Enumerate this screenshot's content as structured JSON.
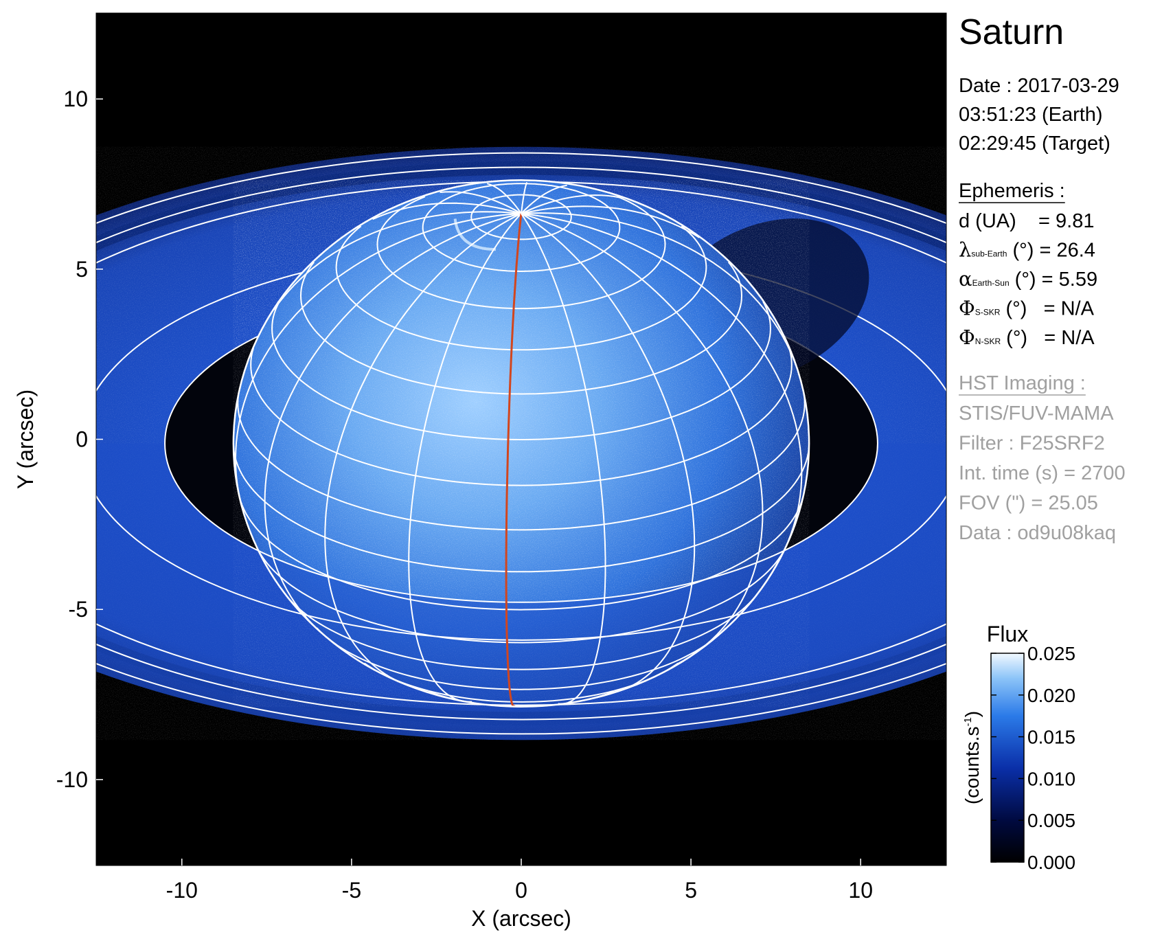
{
  "chart_data": {
    "type": "image",
    "title": "Saturn",
    "xlabel": "X (arcsec)",
    "ylabel": "Y (arcsec)",
    "xlim": [
      -12.525,
      12.525
    ],
    "ylim": [
      -12.525,
      12.525
    ],
    "xticks": [
      -10,
      -5,
      0,
      5,
      10
    ],
    "yticks": [
      -10,
      -5,
      0,
      5,
      10
    ],
    "colorbar": {
      "label": "Flux",
      "units": "(counts.s",
      "units_sup": "-1",
      "units_end": ")",
      "lim": [
        0,
        0.025
      ],
      "ticks": [
        {
          "value": 0,
          "label": "0.000"
        },
        0.005,
        {
          "value": 0.01,
          "label": "0.010"
        },
        0.015,
        {
          "value": 0.02,
          "label": "0.020"
        },
        0.025
      ]
    }
  },
  "info": {
    "date": [
      "Date : 2017-03-29",
      "03:51:23 (Earth)",
      "02:29:45 (Target)"
    ],
    "ephemeris": {
      "header": "Ephemeris :",
      "rows": [
        {
          "text": "d (UA)    = 9.81"
        },
        {
          "symbol": "λ",
          "sub": "sub-Earth",
          "text": " (°) = 26.4"
        },
        {
          "symbol": "α",
          "sub": "Earth-Sun",
          "text": " (°) = 5.59"
        },
        {
          "symbol": "Φ",
          "sub": "S-SKR",
          "text": " (°)   = N/A"
        },
        {
          "symbol": "Φ",
          "sub": "N-SKR",
          "text": " (°)   = N/A"
        }
      ]
    },
    "imaging": {
      "header": "HST Imaging :",
      "lines": [
        "STIS/FUV-MAMA",
        "Filter : F25SRF2",
        "Int. time (s) = 2700",
        "FOV (\") = 25.05",
        "Data : od9u08kaq"
      ]
    }
  }
}
